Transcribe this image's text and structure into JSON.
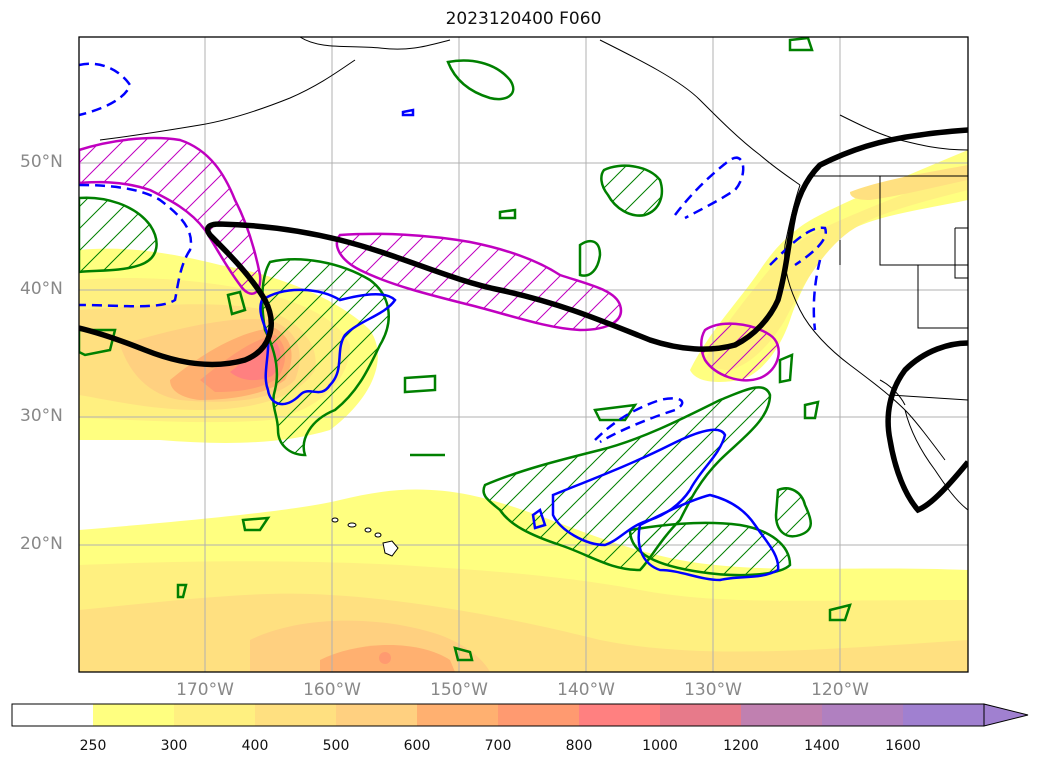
{
  "title": "2023120400 F060",
  "lat_labels": [
    "50°N",
    "40°N",
    "30°N",
    "20°N"
  ],
  "lon_labels": [
    "170°W",
    "160°W",
    "150°W",
    "140°W",
    "130°W",
    "120°W"
  ],
  "colorbar": {
    "ticks": [
      "250",
      "300",
      "400",
      "500",
      "600",
      "700",
      "800",
      "1000",
      "1200",
      "1400",
      "1600"
    ],
    "colors": [
      "#ffffff",
      "#ffff80",
      "#fff080",
      "#ffe080",
      "#ffd080",
      "#ffb070",
      "#ff9a70",
      "#ff8080",
      "#e77a8a",
      "#c080b0",
      "#b080c0",
      "#a080d0"
    ],
    "extend": "max"
  },
  "style": {
    "jet_color": "#000000",
    "magenta_hatch_color": "#c000c0",
    "green_hatch_color": "#008000",
    "blue_contour_color": "#0000ff"
  }
}
